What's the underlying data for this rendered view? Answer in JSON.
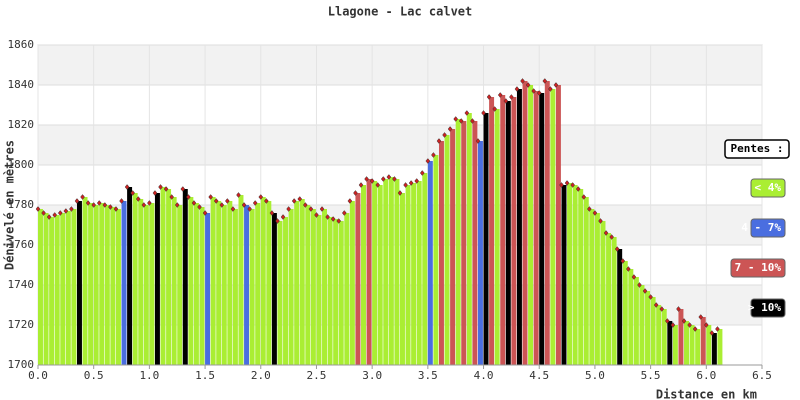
{
  "chart_data": {
    "type": "elevation-bar",
    "title": "Llagone - Lac calvet",
    "x_label": "Distance en km",
    "y_label": "Dénivelé en mètres",
    "xlim": [
      0,
      6.5
    ],
    "ylim": [
      1700,
      1860
    ],
    "xticks": [
      {
        "value": 0,
        "label": "0.0"
      },
      0.5,
      {
        "value": 1,
        "label": "1.0"
      },
      1.5,
      {
        "value": 2,
        "label": "2.0"
      },
      2.5,
      {
        "value": 3,
        "label": "3.0"
      },
      3.5,
      {
        "value": 4,
        "label": "4.0"
      },
      4.5,
      {
        "value": 5,
        "label": "5.0"
      },
      5.5,
      {
        "value": 6,
        "label": "6.0"
      },
      6.5
    ],
    "yticks": [
      1700,
      1720,
      1740,
      1760,
      1780,
      1800,
      1820,
      1840,
      1860
    ],
    "grid": true,
    "marker_color": "#cc2222",
    "legend": {
      "title": "Pentes :",
      "items": [
        {
          "label": "< 4%",
          "color": "#aaee33"
        },
        {
          "label": "4 - 7%",
          "color": "#4a6ee0"
        },
        {
          "label": "7 - 10%",
          "color": "#cc5555"
        },
        {
          "label": "> 10%",
          "color": "#000000"
        }
      ]
    },
    "x": [
      0,
      0.05,
      0.1,
      0.15,
      0.2,
      0.25,
      0.3,
      0.35,
      0.4,
      0.45,
      0.5,
      0.55,
      0.6,
      0.65,
      0.7,
      0.75,
      0.8,
      0.85,
      0.9,
      0.95,
      1,
      1.05,
      1.1,
      1.15,
      1.2,
      1.25,
      1.3,
      1.35,
      1.4,
      1.45,
      1.5,
      1.55,
      1.6,
      1.65,
      1.7,
      1.75,
      1.8,
      1.85,
      1.9,
      1.95,
      2,
      2.05,
      2.1,
      2.15,
      2.2,
      2.25,
      2.3,
      2.35,
      2.4,
      2.45,
      2.5,
      2.55,
      2.6,
      2.65,
      2.7,
      2.75,
      2.8,
      2.85,
      2.9,
      2.95,
      3,
      3.05,
      3.1,
      3.15,
      3.2,
      3.25,
      3.3,
      3.35,
      3.4,
      3.45,
      3.5,
      3.55,
      3.6,
      3.65,
      3.7,
      3.75,
      3.8,
      3.85,
      3.9,
      3.95,
      4,
      4.05,
      4.1,
      4.15,
      4.2,
      4.25,
      4.3,
      4.35,
      4.4,
      4.45,
      4.5,
      4.55,
      4.6,
      4.65,
      4.7,
      4.75,
      4.8,
      4.85,
      4.9,
      4.95,
      5,
      5.05,
      5.1,
      5.15,
      5.2,
      5.25,
      5.3,
      5.35,
      5.4,
      5.45,
      5.5,
      5.55,
      5.6,
      5.65,
      5.7,
      5.75,
      5.8,
      5.85,
      5.9,
      5.95,
      6,
      6.05,
      6.1
    ],
    "values": [
      1778,
      1776,
      1774,
      1775,
      1776,
      1777,
      1778,
      1782,
      1784,
      1781,
      1780,
      1781,
      1780,
      1779,
      1778,
      1782,
      1789,
      1786,
      1783,
      1780,
      1781,
      1786,
      1789,
      1788,
      1784,
      1780,
      1788,
      1784,
      1781,
      1779,
      1776,
      1784,
      1782,
      1780,
      1782,
      1778,
      1785,
      1780,
      1778,
      1781,
      1784,
      1782,
      1776,
      1772,
      1774,
      1778,
      1782,
      1783,
      1780,
      1778,
      1775,
      1778,
      1774,
      1773,
      1772,
      1776,
      1782,
      1786,
      1790,
      1793,
      1792,
      1790,
      1793,
      1794,
      1793,
      1786,
      1790,
      1791,
      1792,
      1796,
      1802,
      1805,
      1812,
      1815,
      1818,
      1823,
      1822,
      1826,
      1822,
      1812,
      1826,
      1834,
      1828,
      1835,
      1832,
      1834,
      1838,
      1842,
      1840,
      1837,
      1836,
      1842,
      1838,
      1840,
      1790,
      1791,
      1790,
      1788,
      1784,
      1778,
      1776,
      1772,
      1766,
      1764,
      1758,
      1752,
      1748,
      1744,
      1740,
      1737,
      1734,
      1730,
      1728,
      1722,
      1720,
      1728,
      1722,
      1720,
      1718,
      1724,
      1720,
      1716,
      1718
    ],
    "slope_class": [
      0,
      0,
      0,
      0,
      0,
      0,
      0,
      3,
      0,
      0,
      0,
      0,
      0,
      0,
      0,
      1,
      3,
      0,
      0,
      0,
      0,
      3,
      0,
      0,
      0,
      0,
      3,
      0,
      0,
      0,
      1,
      0,
      0,
      0,
      0,
      0,
      0,
      1,
      0,
      0,
      0,
      0,
      3,
      0,
      0,
      0,
      0,
      0,
      0,
      0,
      0,
      0,
      0,
      0,
      0,
      0,
      0,
      2,
      0,
      2,
      0,
      0,
      0,
      0,
      0,
      0,
      0,
      0,
      0,
      0,
      1,
      0,
      2,
      0,
      2,
      0,
      2,
      0,
      2,
      1,
      3,
      2,
      0,
      2,
      3,
      2,
      3,
      2,
      0,
      2,
      3,
      2,
      0,
      2,
      3,
      0,
      0,
      0,
      0,
      0,
      0,
      0,
      0,
      0,
      3,
      0,
      0,
      0,
      0,
      0,
      0,
      0,
      0,
      3,
      0,
      2,
      0,
      0,
      0,
      2,
      0,
      3,
      0
    ]
  }
}
